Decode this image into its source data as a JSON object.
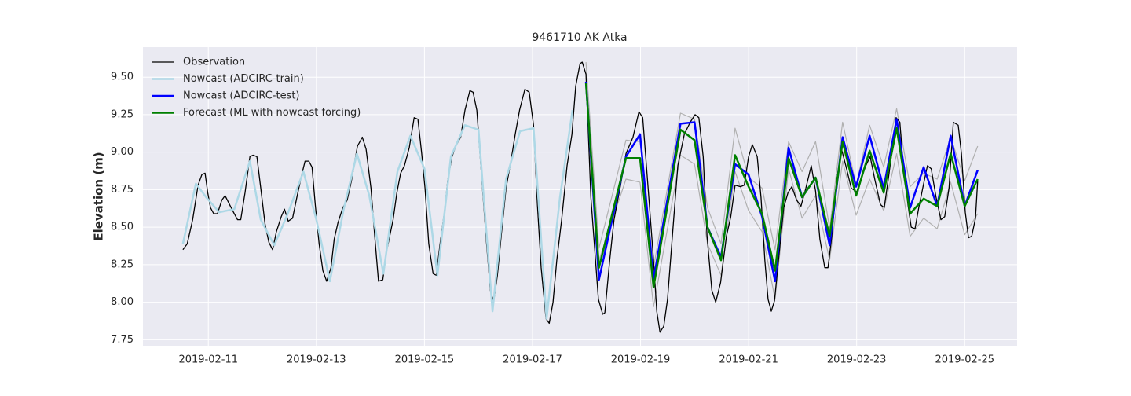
{
  "chart_data": {
    "type": "line",
    "title": "9461710 AK Atka",
    "ylabel": "Elevation (m)",
    "xlim": [
      9.79,
      25.97
    ],
    "ylim": [
      7.71,
      9.7
    ],
    "xticks": [
      {
        "value": 11,
        "label": "2019-02-11"
      },
      {
        "value": 13,
        "label": "2019-02-13"
      },
      {
        "value": 15,
        "label": "2019-02-15"
      },
      {
        "value": 17,
        "label": "2019-02-17"
      },
      {
        "value": 19,
        "label": "2019-02-19"
      },
      {
        "value": 21,
        "label": "2019-02-21"
      },
      {
        "value": 23,
        "label": "2019-02-23"
      },
      {
        "value": 25,
        "label": "2019-02-25"
      }
    ],
    "yticks": [
      7.75,
      {
        "value": 8,
        "label": "8.00"
      },
      8.25,
      {
        "value": 8.5,
        "label": "8.50"
      },
      8.75,
      {
        "value": 9,
        "label": "9.00"
      },
      9.25,
      {
        "value": 9.5,
        "label": "9.50"
      }
    ],
    "grid": true,
    "legend": "upper left",
    "background": "#eaeaf2",
    "series": [
      {
        "name": "Observation",
        "color": "#000000",
        "linewidth": 1.3,
        "x": [
          10.53,
          10.61,
          10.71,
          10.81,
          10.88,
          10.94,
          10.99,
          11.04,
          11.1,
          11.17,
          11.25,
          11.31,
          11.38,
          11.45,
          11.54,
          11.6,
          11.68,
          11.77,
          11.83,
          11.9,
          11.97,
          12.05,
          12.12,
          12.19,
          12.26,
          12.35,
          12.41,
          12.48,
          12.56,
          12.64,
          12.73,
          12.79,
          12.86,
          12.92,
          12.98,
          13.05,
          13.12,
          13.19,
          13.27,
          13.33,
          13.4,
          13.49,
          13.57,
          13.65,
          13.76,
          13.85,
          13.92,
          14.01,
          14.08,
          14.15,
          14.23,
          14.3,
          14.42,
          14.49,
          14.56,
          14.63,
          14.72,
          14.81,
          14.88,
          14.95,
          15.01,
          15.08,
          15.16,
          15.22,
          15.29,
          15.37,
          15.43,
          15.51,
          15.58,
          15.67,
          15.75,
          15.84,
          15.9,
          15.97,
          16.06,
          16.15,
          16.22,
          16.28,
          16.35,
          16.42,
          16.51,
          16.6,
          16.68,
          16.76,
          16.86,
          16.94,
          17.02,
          17.09,
          17.16,
          17.25,
          17.31,
          17.38,
          17.45,
          17.54,
          17.64,
          17.73,
          17.8,
          17.88,
          17.92,
          17.99,
          18.08,
          18.22,
          18.3,
          18.34,
          18.43,
          18.51,
          18.63,
          18.73,
          18.86,
          18.97,
          19.04,
          19.14,
          19.24,
          19.3,
          19.36,
          19.43,
          19.5,
          19.6,
          19.69,
          19.81,
          19.92,
          20.01,
          20.08,
          20.16,
          20.23,
          20.32,
          20.39,
          20.48,
          20.59,
          20.67,
          20.75,
          20.85,
          20.92,
          21.0,
          21.07,
          21.16,
          21.23,
          21.3,
          21.36,
          21.42,
          21.48,
          21.57,
          21.65,
          21.73,
          21.8,
          21.89,
          21.97,
          22.06,
          22.16,
          22.24,
          22.32,
          22.41,
          22.47,
          22.54,
          22.63,
          22.72,
          22.8,
          22.9,
          23.02,
          23.09,
          23.17,
          23.25,
          23.34,
          23.44,
          23.51,
          23.6,
          23.67,
          23.73,
          23.8,
          23.86,
          23.95,
          24.01,
          24.08,
          24.15,
          24.24,
          24.31,
          24.38,
          24.47,
          24.56,
          24.63,
          24.71,
          24.79,
          24.88,
          24.94,
          25.01,
          25.07,
          25.13,
          25.2,
          25.24
        ],
        "values": [
          8.35,
          8.39,
          8.55,
          8.78,
          8.85,
          8.86,
          8.73,
          8.63,
          8.59,
          8.59,
          8.68,
          8.71,
          8.66,
          8.61,
          8.55,
          8.55,
          8.73,
          8.97,
          8.98,
          8.97,
          8.76,
          8.52,
          8.4,
          8.35,
          8.47,
          8.57,
          8.62,
          8.54,
          8.56,
          8.7,
          8.85,
          8.94,
          8.94,
          8.9,
          8.65,
          8.39,
          8.21,
          8.14,
          8.23,
          8.42,
          8.53,
          8.63,
          8.68,
          8.81,
          9.04,
          9.1,
          9.02,
          8.76,
          8.44,
          8.14,
          8.15,
          8.34,
          8.55,
          8.73,
          8.86,
          8.91,
          9.03,
          9.23,
          9.22,
          8.99,
          8.76,
          8.39,
          8.19,
          8.18,
          8.39,
          8.6,
          8.81,
          8.97,
          9.04,
          9.1,
          9.28,
          9.41,
          9.4,
          9.28,
          8.83,
          8.39,
          8.08,
          8.0,
          8.18,
          8.44,
          8.76,
          8.94,
          9.12,
          9.28,
          9.42,
          9.4,
          9.18,
          8.65,
          8.23,
          7.89,
          7.86,
          8.0,
          8.28,
          8.55,
          8.91,
          9.12,
          9.44,
          9.59,
          9.6,
          9.52,
          8.7,
          8.02,
          7.92,
          7.93,
          8.28,
          8.55,
          8.78,
          8.99,
          9.1,
          9.27,
          9.23,
          8.76,
          8.28,
          7.94,
          7.8,
          7.84,
          8.02,
          8.49,
          8.91,
          9.12,
          9.2,
          9.25,
          9.23,
          8.97,
          8.44,
          8.08,
          8.0,
          8.13,
          8.44,
          8.57,
          8.78,
          8.77,
          8.78,
          8.97,
          9.05,
          8.97,
          8.7,
          8.28,
          8.02,
          7.94,
          8.01,
          8.34,
          8.63,
          8.73,
          8.77,
          8.68,
          8.64,
          8.76,
          8.91,
          8.74,
          8.42,
          8.23,
          8.23,
          8.44,
          8.81,
          9.02,
          8.91,
          8.76,
          8.73,
          8.83,
          8.91,
          8.97,
          8.81,
          8.65,
          8.63,
          8.86,
          9.05,
          9.23,
          9.2,
          8.91,
          8.65,
          8.5,
          8.49,
          8.63,
          8.79,
          8.91,
          8.89,
          8.7,
          8.55,
          8.57,
          8.76,
          9.2,
          9.18,
          8.99,
          8.6,
          8.43,
          8.44,
          8.56,
          8.81
        ]
      },
      {
        "name": "Nowcast (ADCIRC-train)",
        "color": "#add8e6",
        "linewidth": 2.5,
        "x": [
          10.53,
          10.77,
          10.96,
          11.2,
          11.48,
          11.77,
          11.97,
          12.22,
          12.47,
          12.76,
          13.0,
          13.25,
          13.5,
          13.75,
          13.98,
          14.24,
          14.5,
          14.74,
          15.0,
          15.24,
          15.49,
          15.75,
          16.0,
          16.26,
          16.51,
          16.77,
          17.02,
          17.26,
          17.51,
          17.74
        ],
        "values": [
          8.39,
          8.79,
          8.7,
          8.6,
          8.62,
          8.94,
          8.55,
          8.38,
          8.59,
          8.87,
          8.55,
          8.14,
          8.61,
          8.99,
          8.71,
          8.19,
          8.87,
          9.11,
          8.89,
          8.18,
          8.97,
          9.18,
          9.15,
          7.94,
          8.82,
          9.14,
          9.16,
          7.89,
          8.7,
          9.28
        ]
      },
      {
        "name": "Nowcast (ADCIRC-test)",
        "color": "#0000ff",
        "linewidth": 2.5,
        "x": [
          17.99,
          18.23,
          18.73,
          18.99,
          19.24,
          19.74,
          20.0,
          20.24,
          20.49,
          20.75,
          21.0,
          21.25,
          21.49,
          21.74,
          21.99,
          22.24,
          22.5,
          22.74,
          22.99,
          23.24,
          23.5,
          23.74,
          23.99,
          24.24,
          24.49,
          24.74,
          25.0,
          25.24
        ],
        "values": [
          9.47,
          8.15,
          8.97,
          9.12,
          8.15,
          9.19,
          9.2,
          8.5,
          8.3,
          8.92,
          8.85,
          8.57,
          8.14,
          9.03,
          8.7,
          8.83,
          8.38,
          9.1,
          8.77,
          9.11,
          8.76,
          9.22,
          8.63,
          8.9,
          8.64,
          9.11,
          8.64,
          8.88
        ]
      },
      {
        "name": "Forecast (ML with nowcast forcing)",
        "color": "#008000",
        "linewidth": 2.5,
        "x": [
          17.99,
          18.23,
          18.73,
          18.99,
          19.24,
          19.74,
          20.0,
          20.24,
          20.49,
          20.75,
          21.0,
          21.25,
          21.49,
          21.74,
          21.99,
          22.24,
          22.5,
          22.74,
          22.99,
          23.24,
          23.5,
          23.74,
          23.99,
          24.24,
          24.49,
          24.74,
          25.0,
          25.24
        ],
        "values": [
          9.46,
          8.23,
          8.96,
          8.96,
          8.1,
          9.15,
          9.08,
          8.5,
          8.28,
          8.98,
          8.77,
          8.59,
          8.21,
          8.96,
          8.7,
          8.83,
          8.44,
          9.07,
          8.71,
          9.01,
          8.73,
          9.16,
          8.59,
          8.69,
          8.64,
          8.99,
          8.64,
          8.82
        ]
      },
      {
        "color": "#b0b0b0",
        "linewidth": 1.2,
        "x": [
          17.99,
          18.23,
          18.73,
          18.99,
          19.24,
          19.74,
          20.0,
          20.24,
          20.49,
          20.75,
          21.0,
          21.25,
          21.49,
          21.74,
          21.99,
          22.24,
          22.5,
          22.74,
          22.99,
          23.24,
          23.5,
          23.74,
          23.99,
          24.24,
          24.49,
          24.74,
          25.0,
          25.24
        ],
        "values": [
          9.6,
          8.36,
          9.08,
          9.07,
          8.23,
          9.26,
          9.22,
          8.63,
          8.39,
          9.16,
          8.83,
          8.76,
          8.35,
          9.07,
          8.87,
          9.07,
          8.49,
          9.2,
          8.78,
          9.18,
          8.9,
          9.29,
          8.77,
          8.86,
          8.82,
          9.1,
          8.81,
          9.04
        ]
      },
      {
        "color": "#b0b0b0",
        "linewidth": 1.2,
        "x": [
          17.99,
          18.23,
          18.73,
          18.99,
          19.24,
          19.74,
          20.0,
          20.24,
          20.49,
          20.75,
          21.0,
          21.25,
          21.49,
          21.74,
          21.99,
          22.24,
          22.5,
          22.74,
          22.99,
          23.24,
          23.5,
          23.74,
          23.99,
          24.24,
          24.49,
          24.74,
          25.0,
          25.24
        ],
        "values": [
          9.47,
          8.28,
          8.82,
          8.8,
          7.97,
          8.98,
          8.92,
          8.39,
          8.18,
          8.87,
          8.61,
          8.47,
          8.02,
          8.89,
          8.56,
          8.71,
          8.28,
          8.94,
          8.58,
          8.82,
          8.61,
          8.99,
          8.44,
          8.56,
          8.49,
          8.8,
          8.45,
          8.59
        ]
      }
    ]
  }
}
